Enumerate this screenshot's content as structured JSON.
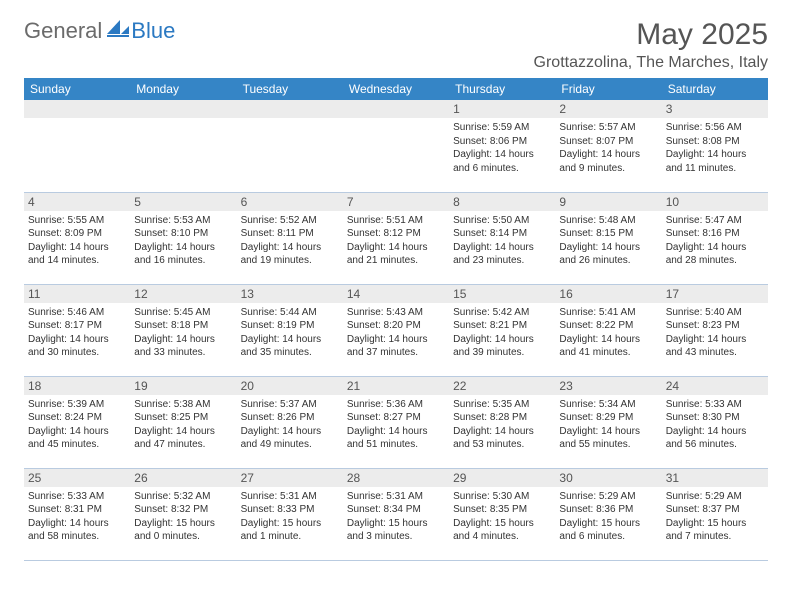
{
  "logo": {
    "general": "General",
    "blue": "Blue"
  },
  "title": "May 2025",
  "location": "Grottazzolina, The Marches, Italy",
  "colors": {
    "header_bg": "#3585c6",
    "header_text": "#ffffff",
    "daynum_bg": "#ececec",
    "border": "#b9cbe0",
    "text": "#333333",
    "title_text": "#555555",
    "logo_gray": "#6b6b6b",
    "logo_blue": "#2b79c2"
  },
  "dow": [
    "Sunday",
    "Monday",
    "Tuesday",
    "Wednesday",
    "Thursday",
    "Friday",
    "Saturday"
  ],
  "weeks": [
    [
      {
        "n": "",
        "sr": "",
        "ss": "",
        "dl": ""
      },
      {
        "n": "",
        "sr": "",
        "ss": "",
        "dl": ""
      },
      {
        "n": "",
        "sr": "",
        "ss": "",
        "dl": ""
      },
      {
        "n": "",
        "sr": "",
        "ss": "",
        "dl": ""
      },
      {
        "n": "1",
        "sr": "Sunrise: 5:59 AM",
        "ss": "Sunset: 8:06 PM",
        "dl": "Daylight: 14 hours and 6 minutes."
      },
      {
        "n": "2",
        "sr": "Sunrise: 5:57 AM",
        "ss": "Sunset: 8:07 PM",
        "dl": "Daylight: 14 hours and 9 minutes."
      },
      {
        "n": "3",
        "sr": "Sunrise: 5:56 AM",
        "ss": "Sunset: 8:08 PM",
        "dl": "Daylight: 14 hours and 11 minutes."
      }
    ],
    [
      {
        "n": "4",
        "sr": "Sunrise: 5:55 AM",
        "ss": "Sunset: 8:09 PM",
        "dl": "Daylight: 14 hours and 14 minutes."
      },
      {
        "n": "5",
        "sr": "Sunrise: 5:53 AM",
        "ss": "Sunset: 8:10 PM",
        "dl": "Daylight: 14 hours and 16 minutes."
      },
      {
        "n": "6",
        "sr": "Sunrise: 5:52 AM",
        "ss": "Sunset: 8:11 PM",
        "dl": "Daylight: 14 hours and 19 minutes."
      },
      {
        "n": "7",
        "sr": "Sunrise: 5:51 AM",
        "ss": "Sunset: 8:12 PM",
        "dl": "Daylight: 14 hours and 21 minutes."
      },
      {
        "n": "8",
        "sr": "Sunrise: 5:50 AM",
        "ss": "Sunset: 8:14 PM",
        "dl": "Daylight: 14 hours and 23 minutes."
      },
      {
        "n": "9",
        "sr": "Sunrise: 5:48 AM",
        "ss": "Sunset: 8:15 PM",
        "dl": "Daylight: 14 hours and 26 minutes."
      },
      {
        "n": "10",
        "sr": "Sunrise: 5:47 AM",
        "ss": "Sunset: 8:16 PM",
        "dl": "Daylight: 14 hours and 28 minutes."
      }
    ],
    [
      {
        "n": "11",
        "sr": "Sunrise: 5:46 AM",
        "ss": "Sunset: 8:17 PM",
        "dl": "Daylight: 14 hours and 30 minutes."
      },
      {
        "n": "12",
        "sr": "Sunrise: 5:45 AM",
        "ss": "Sunset: 8:18 PM",
        "dl": "Daylight: 14 hours and 33 minutes."
      },
      {
        "n": "13",
        "sr": "Sunrise: 5:44 AM",
        "ss": "Sunset: 8:19 PM",
        "dl": "Daylight: 14 hours and 35 minutes."
      },
      {
        "n": "14",
        "sr": "Sunrise: 5:43 AM",
        "ss": "Sunset: 8:20 PM",
        "dl": "Daylight: 14 hours and 37 minutes."
      },
      {
        "n": "15",
        "sr": "Sunrise: 5:42 AM",
        "ss": "Sunset: 8:21 PM",
        "dl": "Daylight: 14 hours and 39 minutes."
      },
      {
        "n": "16",
        "sr": "Sunrise: 5:41 AM",
        "ss": "Sunset: 8:22 PM",
        "dl": "Daylight: 14 hours and 41 minutes."
      },
      {
        "n": "17",
        "sr": "Sunrise: 5:40 AM",
        "ss": "Sunset: 8:23 PM",
        "dl": "Daylight: 14 hours and 43 minutes."
      }
    ],
    [
      {
        "n": "18",
        "sr": "Sunrise: 5:39 AM",
        "ss": "Sunset: 8:24 PM",
        "dl": "Daylight: 14 hours and 45 minutes."
      },
      {
        "n": "19",
        "sr": "Sunrise: 5:38 AM",
        "ss": "Sunset: 8:25 PM",
        "dl": "Daylight: 14 hours and 47 minutes."
      },
      {
        "n": "20",
        "sr": "Sunrise: 5:37 AM",
        "ss": "Sunset: 8:26 PM",
        "dl": "Daylight: 14 hours and 49 minutes."
      },
      {
        "n": "21",
        "sr": "Sunrise: 5:36 AM",
        "ss": "Sunset: 8:27 PM",
        "dl": "Daylight: 14 hours and 51 minutes."
      },
      {
        "n": "22",
        "sr": "Sunrise: 5:35 AM",
        "ss": "Sunset: 8:28 PM",
        "dl": "Daylight: 14 hours and 53 minutes."
      },
      {
        "n": "23",
        "sr": "Sunrise: 5:34 AM",
        "ss": "Sunset: 8:29 PM",
        "dl": "Daylight: 14 hours and 55 minutes."
      },
      {
        "n": "24",
        "sr": "Sunrise: 5:33 AM",
        "ss": "Sunset: 8:30 PM",
        "dl": "Daylight: 14 hours and 56 minutes."
      }
    ],
    [
      {
        "n": "25",
        "sr": "Sunrise: 5:33 AM",
        "ss": "Sunset: 8:31 PM",
        "dl": "Daylight: 14 hours and 58 minutes."
      },
      {
        "n": "26",
        "sr": "Sunrise: 5:32 AM",
        "ss": "Sunset: 8:32 PM",
        "dl": "Daylight: 15 hours and 0 minutes."
      },
      {
        "n": "27",
        "sr": "Sunrise: 5:31 AM",
        "ss": "Sunset: 8:33 PM",
        "dl": "Daylight: 15 hours and 1 minute."
      },
      {
        "n": "28",
        "sr": "Sunrise: 5:31 AM",
        "ss": "Sunset: 8:34 PM",
        "dl": "Daylight: 15 hours and 3 minutes."
      },
      {
        "n": "29",
        "sr": "Sunrise: 5:30 AM",
        "ss": "Sunset: 8:35 PM",
        "dl": "Daylight: 15 hours and 4 minutes."
      },
      {
        "n": "30",
        "sr": "Sunrise: 5:29 AM",
        "ss": "Sunset: 8:36 PM",
        "dl": "Daylight: 15 hours and 6 minutes."
      },
      {
        "n": "31",
        "sr": "Sunrise: 5:29 AM",
        "ss": "Sunset: 8:37 PM",
        "dl": "Daylight: 15 hours and 7 minutes."
      }
    ]
  ]
}
